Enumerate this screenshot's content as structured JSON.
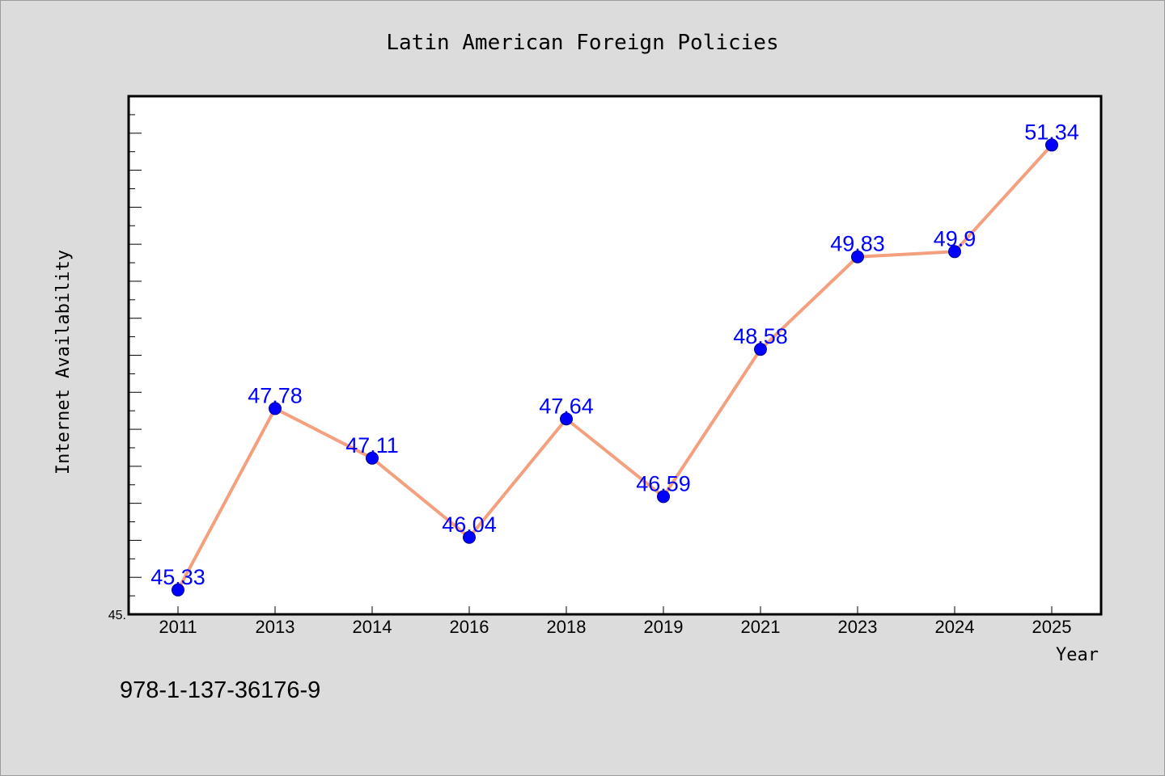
{
  "chart_data": {
    "type": "line",
    "title": "Latin American Foreign Policies",
    "xlabel": "Year",
    "ylabel": "Internet Availability",
    "categories": [
      "2011",
      "2013",
      "2014",
      "2016",
      "2018",
      "2019",
      "2021",
      "2023",
      "2024",
      "2025"
    ],
    "series": [
      {
        "values": [
          45.33,
          47.78,
          47.11,
          46.04,
          47.64,
          46.59,
          48.58,
          49.83,
          49.9,
          51.34
        ],
        "data_labels": [
          "45.33",
          "47.78",
          "47.11",
          "46.04",
          "47.64",
          "46.59",
          "48.58",
          "49.83",
          "49.9",
          "51.34"
        ]
      }
    ],
    "ylim": [
      45,
      52
    ],
    "y_tick_labels": [
      "45."
    ],
    "grid": false,
    "line_color": "#f4a07f",
    "marker_color": "#0000ff",
    "label_color": "#0000ff"
  },
  "footer": {
    "code": "978-1-137-36176-9"
  }
}
